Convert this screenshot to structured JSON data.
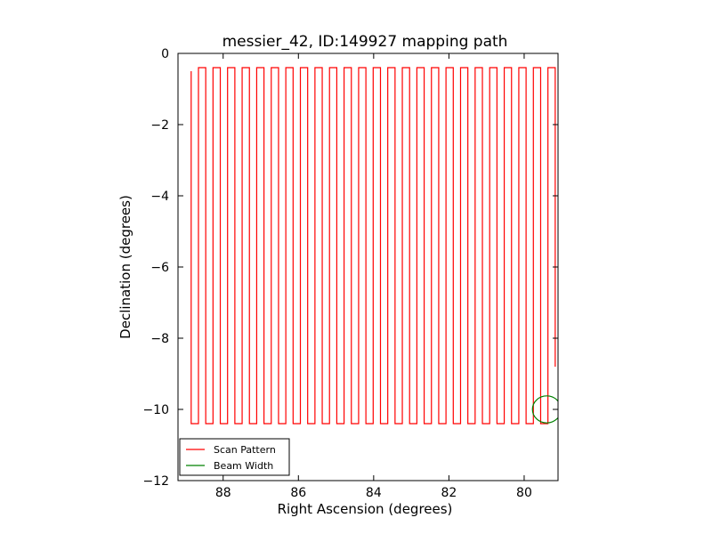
{
  "chart_data": {
    "type": "line",
    "title": "messier_42, ID:149927 mapping path",
    "xlabel": "Right Ascension (degrees)",
    "ylabel": "Declination (degrees)",
    "xlim": [
      89.2,
      79.1
    ],
    "ylim": [
      -12,
      0
    ],
    "x_inverted": true,
    "xticks": [
      88,
      86,
      84,
      82,
      80
    ],
    "yticks": [
      0,
      -2,
      -4,
      -6,
      -8,
      -10,
      -12
    ],
    "grid": false,
    "legend": {
      "placement": "lower-left",
      "entries": [
        "Scan Pattern",
        "Beam Width"
      ]
    },
    "colors": {
      "scan": "#ff0000",
      "beam": "#008000",
      "axes": "#000000",
      "background": "#ffffff"
    },
    "series": [
      {
        "name": "Scan Pattern",
        "kind": "boustrophedon-scan",
        "ra_start": 88.85,
        "ra_spacing": 0.1935,
        "legs": 51,
        "dec_top": -0.4,
        "dec_bottom": -10.4,
        "first_leg_dec_start": -0.5,
        "last_leg_dec_end": -8.8,
        "color": "#ff0000"
      },
      {
        "name": "Beam Width",
        "kind": "circle",
        "center_ra": 79.4,
        "center_dec": -10.0,
        "radius_deg": 0.38,
        "color": "#008000"
      }
    ]
  }
}
